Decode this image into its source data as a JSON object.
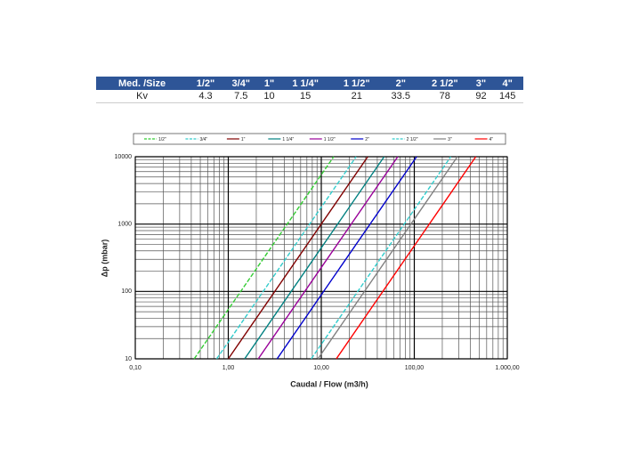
{
  "table": {
    "header": [
      "Med. /Size",
      "1/2\"",
      "3/4\"",
      "1\"",
      "1 1/4\"",
      "1 1/2\"",
      "2\"",
      "2 1/2\"",
      "3\"",
      "4\""
    ],
    "rows": [
      [
        "Kv",
        4.3,
        7.5,
        10,
        15,
        21,
        33.5,
        78,
        92,
        145
      ]
    ]
  },
  "chart_data": {
    "type": "line",
    "x_label": "Caudal / Flow (m3/h)",
    "y_label": "Δp (mbar)",
    "xscale": "log",
    "yscale": "log",
    "xlim": [
      0.1,
      1000
    ],
    "ylim": [
      10,
      10000
    ],
    "xticks": [
      {
        "value": 0.1,
        "label": "0,10"
      },
      {
        "value": 1,
        "label": "1,00"
      },
      {
        "value": 10,
        "label": "10,00"
      },
      {
        "value": 100,
        "label": "100,00"
      },
      {
        "value": 1000,
        "label": "1.000,00"
      }
    ],
    "yticks": [
      10,
      100,
      1000,
      10000
    ],
    "grid": true,
    "minor_grid": true,
    "legend": "top",
    "series": [
      {
        "name": "1/2\"",
        "color": "#33cc33",
        "dash": true,
        "x": [
          0.43,
          13.6
        ],
        "values": [
          10,
          10000
        ]
      },
      {
        "name": "3/4\"",
        "color": "#33cccc",
        "dash": true,
        "x": [
          0.75,
          23.7
        ],
        "values": [
          10,
          10000
        ]
      },
      {
        "name": "1\"",
        "color": "#800000",
        "dash": false,
        "x": [
          1.0,
          31.6
        ],
        "values": [
          10,
          10000
        ]
      },
      {
        "name": "1 1/4\"",
        "color": "#008080",
        "dash": false,
        "x": [
          1.5,
          47.4
        ],
        "values": [
          10,
          10000
        ]
      },
      {
        "name": "1 1/2\"",
        "color": "#990099",
        "dash": false,
        "x": [
          2.1,
          66.4
        ],
        "values": [
          10,
          10000
        ]
      },
      {
        "name": "2\"",
        "color": "#0000cc",
        "dash": false,
        "x": [
          3.35,
          105.9
        ],
        "values": [
          10,
          10000
        ]
      },
      {
        "name": "2 1/2\"",
        "color": "#33cccc",
        "dash": true,
        "x": [
          7.8,
          246.7
        ],
        "values": [
          10,
          10000
        ]
      },
      {
        "name": "3\"",
        "color": "#808080",
        "dash": false,
        "x": [
          9.2,
          290.9
        ],
        "values": [
          10,
          10000
        ]
      },
      {
        "name": "4\"",
        "color": "#ff0000",
        "dash": false,
        "x": [
          14.5,
          458.5
        ],
        "values": [
          10,
          10000
        ]
      }
    ]
  }
}
